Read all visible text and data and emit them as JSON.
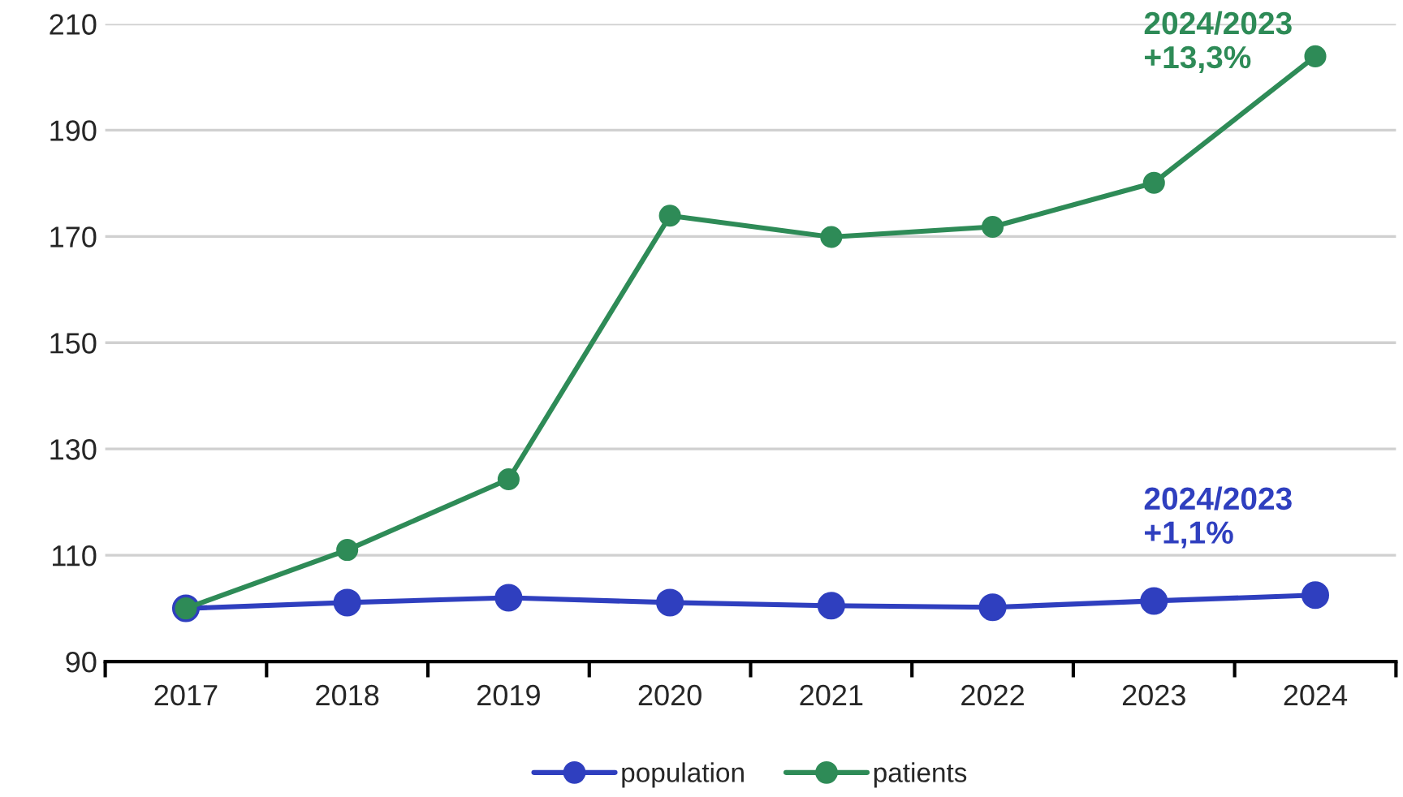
{
  "chart_data": {
    "type": "line",
    "categories": [
      "2017",
      "2018",
      "2019",
      "2020",
      "2021",
      "2022",
      "2023",
      "2024"
    ],
    "series": [
      {
        "name": "population",
        "color": "#2f3fbf",
        "values": [
          100,
          101.1,
          102,
          101.1,
          100.5,
          100.2,
          101.4,
          102.5
        ]
      },
      {
        "name": "patients",
        "color": "#2e8b57",
        "values": [
          100,
          111,
          124.3,
          173.9,
          169.9,
          171.8,
          180.1,
          203.9
        ]
      }
    ],
    "ylim": [
      90,
      210
    ],
    "yticks": [
      90,
      110,
      130,
      150,
      170,
      190,
      210
    ],
    "annotations": [
      {
        "text": "2024/2023\n+1,1%",
        "x": "2024",
        "y": 102.5
      },
      {
        "text": "2024/2023\n+13,3%",
        "x": "2024",
        "y": 203.9
      }
    ],
    "grid": "y",
    "legend": "bottom",
    "marker": "circle",
    "line_style": "solid"
  }
}
